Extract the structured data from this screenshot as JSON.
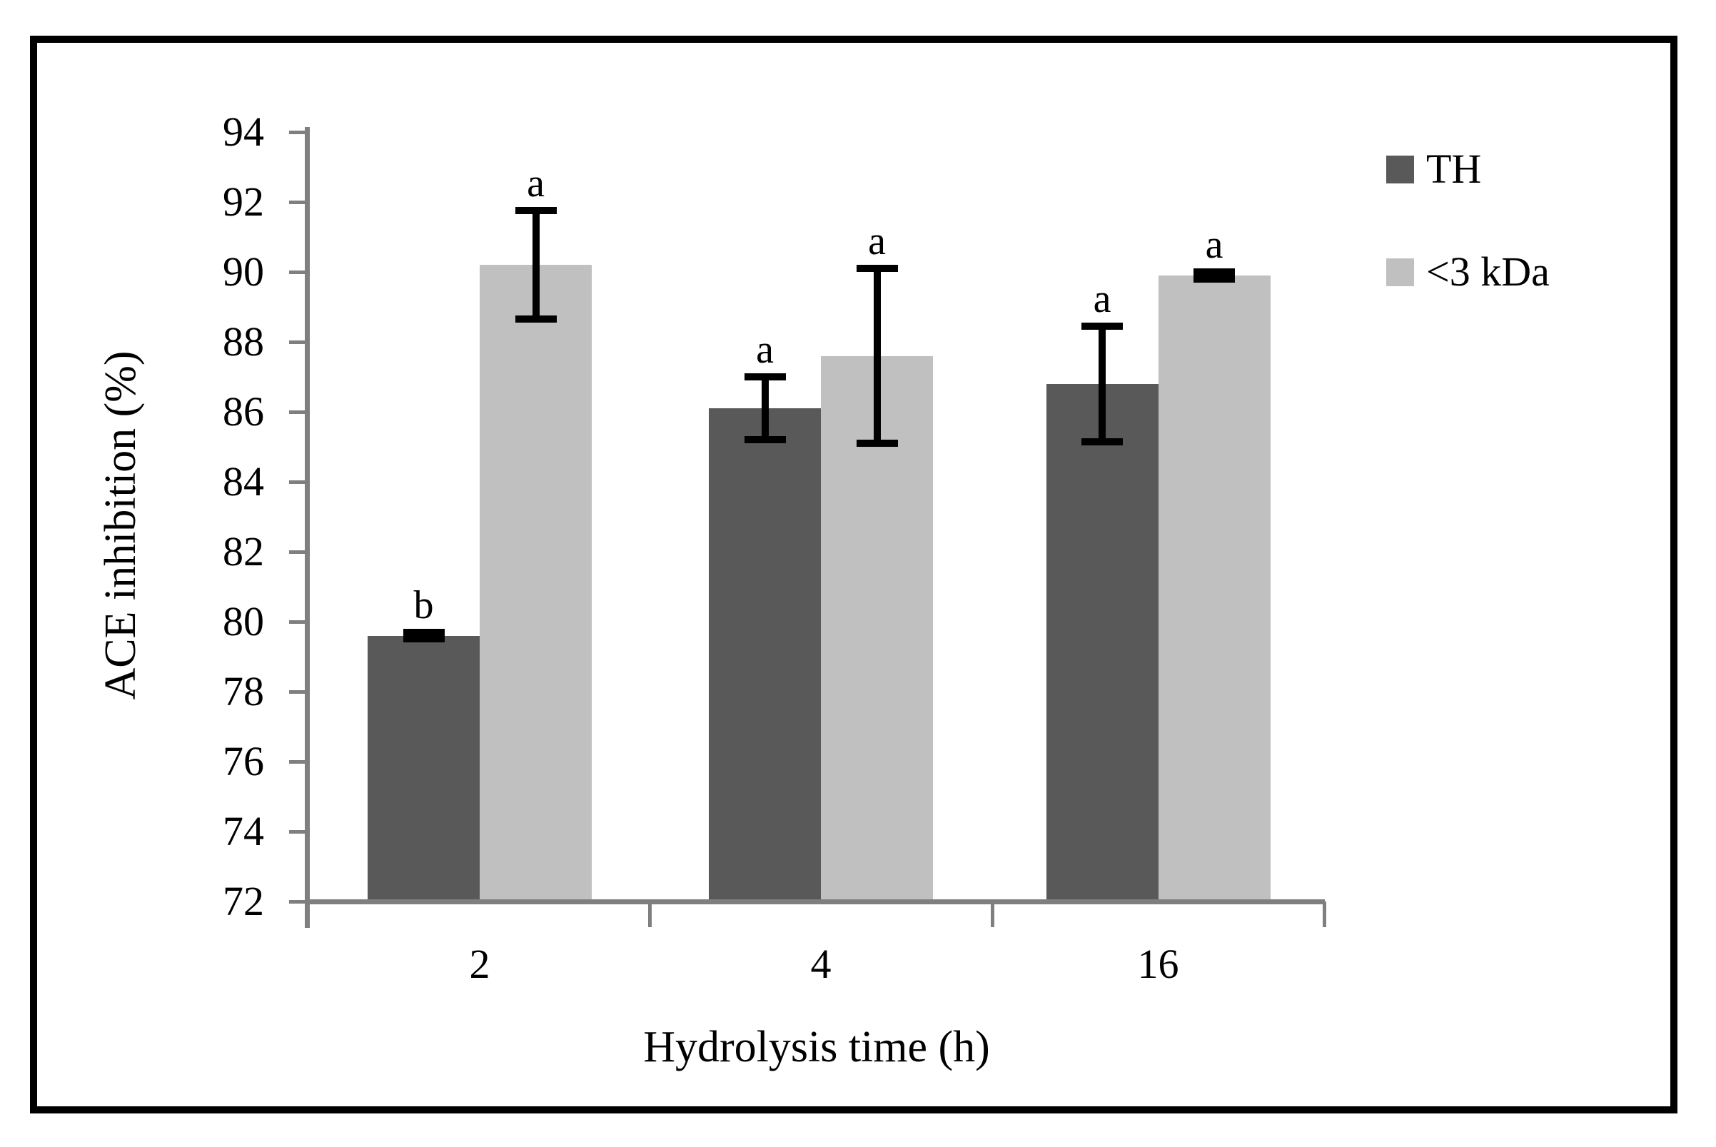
{
  "chart_data": {
    "type": "bar",
    "title": "",
    "xlabel": "Hydrolysis time (h)",
    "ylabel": "ACE inhibition (%)",
    "categories": [
      "2",
      "4",
      "16"
    ],
    "series": [
      {
        "name": "TH",
        "color": "#595959",
        "values": [
          79.6,
          86.1,
          86.8
        ],
        "errors": [
          0.2,
          1.0,
          1.75
        ],
        "sig_letters": [
          "b",
          "a",
          "a"
        ]
      },
      {
        "name": "<3 kDa",
        "color": "#c0c0c0",
        "values": [
          90.2,
          87.6,
          89.9
        ],
        "errors": [
          1.65,
          2.6,
          0.2
        ],
        "sig_letters": [
          "a",
          "a",
          "a"
        ]
      }
    ],
    "ylim": [
      72,
      94
    ],
    "yticks": [
      72,
      74,
      76,
      78,
      80,
      82,
      84,
      86,
      88,
      90,
      92,
      94
    ],
    "grid": false,
    "legend_position": "top-right",
    "axis_color": "#7f7f7f",
    "error_bar_color": "#000000",
    "text_color": "#000000",
    "background": "#ffffff",
    "border_color": "#000000"
  }
}
